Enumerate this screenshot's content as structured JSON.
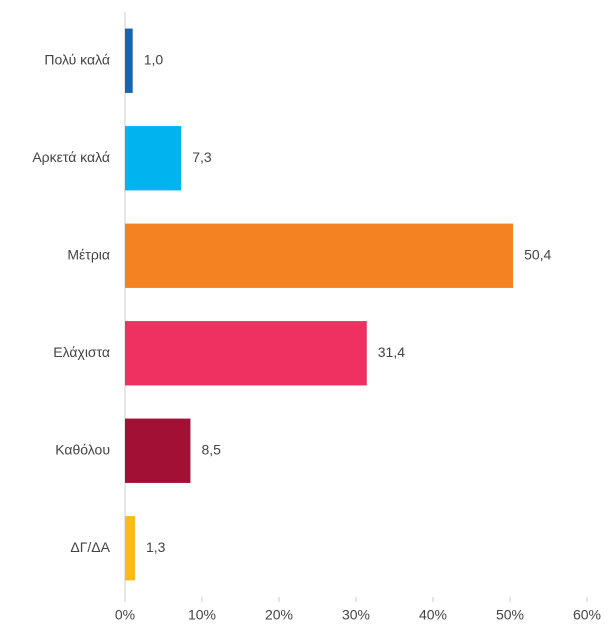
{
  "chart_data": {
    "type": "bar",
    "orientation": "horizontal",
    "categories": [
      "Πολύ καλά",
      "Αρκετά καλά",
      "Μέτρια",
      "Ελάχιστα",
      "Καθόλου",
      "ΔΓ/ΔΑ"
    ],
    "values": [
      1.0,
      7.3,
      50.4,
      31.4,
      8.5,
      1.3
    ],
    "value_labels": [
      "1,0",
      "7,3",
      "50,4",
      "31,4",
      "8,5",
      "1,3"
    ],
    "colors": [
      "#1565b0",
      "#00b4ef",
      "#f58220",
      "#ee3160",
      "#a31035",
      "#fbbc1a"
    ],
    "xlim": [
      0,
      60
    ],
    "xticks": [
      {
        "value": 0,
        "label": "0%"
      },
      {
        "value": 10,
        "label": "10%"
      },
      {
        "value": 20,
        "label": "20%"
      },
      {
        "value": 30,
        "label": "30%"
      },
      {
        "value": 40,
        "label": "40%"
      },
      {
        "value": 50,
        "label": "50%"
      },
      {
        "value": 60,
        "label": "60%"
      }
    ]
  }
}
